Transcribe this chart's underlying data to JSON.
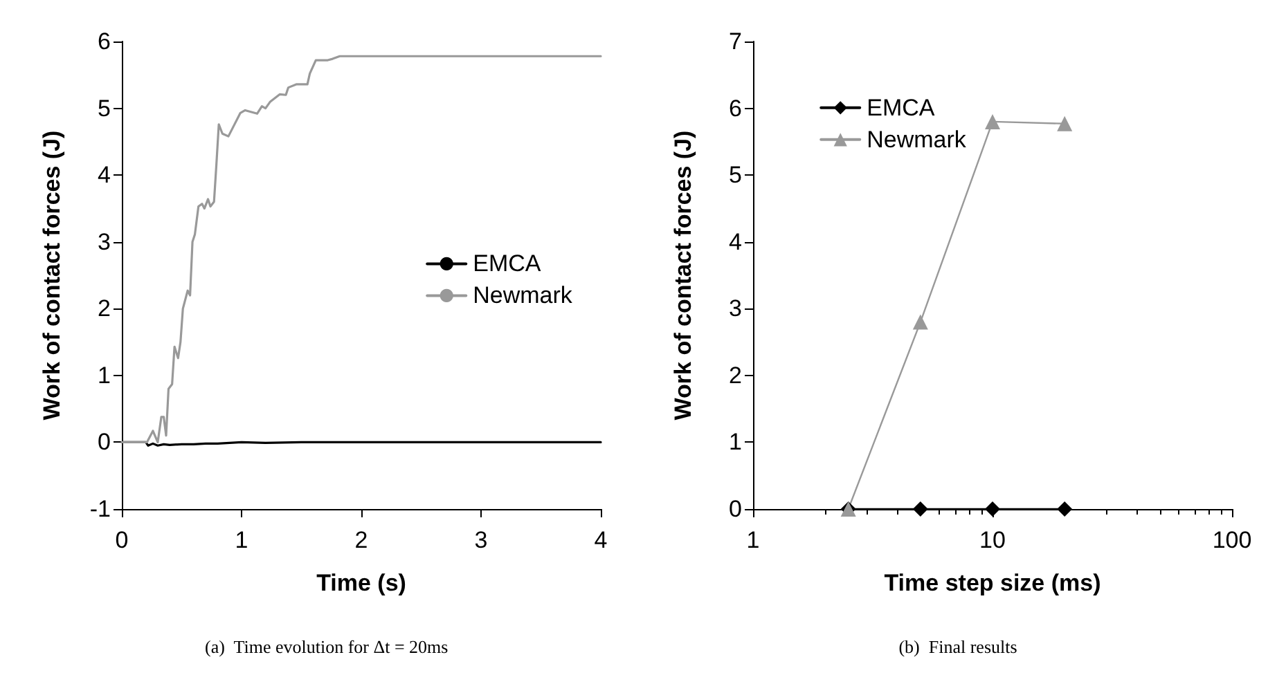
{
  "chart_data": [
    {
      "type": "line",
      "xlabel": "Time (s)",
      "ylabel": "Work of contact forces (J)",
      "xlim": [
        0,
        4
      ],
      "xticks": [
        0,
        1,
        2,
        3,
        4
      ],
      "ylim": [
        -1,
        6
      ],
      "yticks": [
        -1,
        0,
        1,
        2,
        3,
        4,
        5,
        6
      ],
      "grid": false,
      "legend": "right",
      "marker": "none",
      "annotations": [
        "(a)  Time evolution for Δt = 20ms"
      ],
      "series": [
        {
          "name": "EMCA",
          "color": "#000000",
          "x": [
            0,
            0.2,
            0.22,
            0.26,
            0.3,
            0.35,
            0.4,
            0.5,
            0.6,
            0.7,
            0.8,
            1.0,
            1.2,
            1.5,
            4
          ],
          "values": [
            0,
            0,
            -0.05,
            -0.02,
            -0.05,
            -0.03,
            -0.04,
            -0.03,
            -0.03,
            -0.02,
            -0.02,
            0,
            -0.01,
            0,
            0
          ]
        },
        {
          "name": "Newmark",
          "color": "#999999",
          "x": [
            0,
            0.21,
            0.26,
            0.3,
            0.33,
            0.35,
            0.37,
            0.39,
            0.42,
            0.44,
            0.47,
            0.49,
            0.51,
            0.55,
            0.57,
            0.59,
            0.61,
            0.64,
            0.67,
            0.69,
            0.72,
            0.74,
            0.77,
            0.79,
            0.81,
            0.84,
            0.89,
            0.93,
            0.99,
            1.03,
            1.13,
            1.17,
            1.2,
            1.24,
            1.32,
            1.37,
            1.39,
            1.46,
            1.55,
            1.57,
            1.62,
            1.72,
            1.76,
            1.82,
            4
          ],
          "values": [
            0,
            0,
            0.17,
            0,
            0.38,
            0.38,
            0.1,
            0.8,
            0.87,
            1.43,
            1.26,
            1.5,
            2.0,
            2.27,
            2.2,
            3.0,
            3.11,
            3.53,
            3.57,
            3.5,
            3.64,
            3.53,
            3.6,
            4.16,
            4.76,
            4.62,
            4.58,
            4.72,
            4.93,
            4.97,
            4.92,
            5.03,
            5.0,
            5.1,
            5.21,
            5.2,
            5.31,
            5.36,
            5.36,
            5.52,
            5.72,
            5.72,
            5.74,
            5.78,
            5.78
          ]
        }
      ]
    },
    {
      "type": "line",
      "xlabel": "Time step size (ms)",
      "ylabel": "Work of contact forces (J)",
      "log": "x",
      "xlim": [
        1,
        100
      ],
      "xticks": [
        1,
        10,
        100
      ],
      "ylim": [
        0,
        7
      ],
      "yticks": [
        0,
        1,
        2,
        3,
        4,
        5,
        6,
        7
      ],
      "grid": false,
      "legend": "top left",
      "annotations": [
        "(b)  Final results"
      ],
      "series": [
        {
          "name": "EMCA",
          "color": "#000000",
          "marker": "diamond",
          "x": [
            2.5,
            5,
            10,
            20
          ],
          "values": [
            0,
            0,
            0,
            0
          ]
        },
        {
          "name": "Newmark",
          "color": "#999999",
          "marker": "triangle",
          "x": [
            2.5,
            5,
            10,
            20
          ],
          "values": [
            0,
            2.8,
            5.8,
            5.77
          ]
        }
      ]
    }
  ]
}
